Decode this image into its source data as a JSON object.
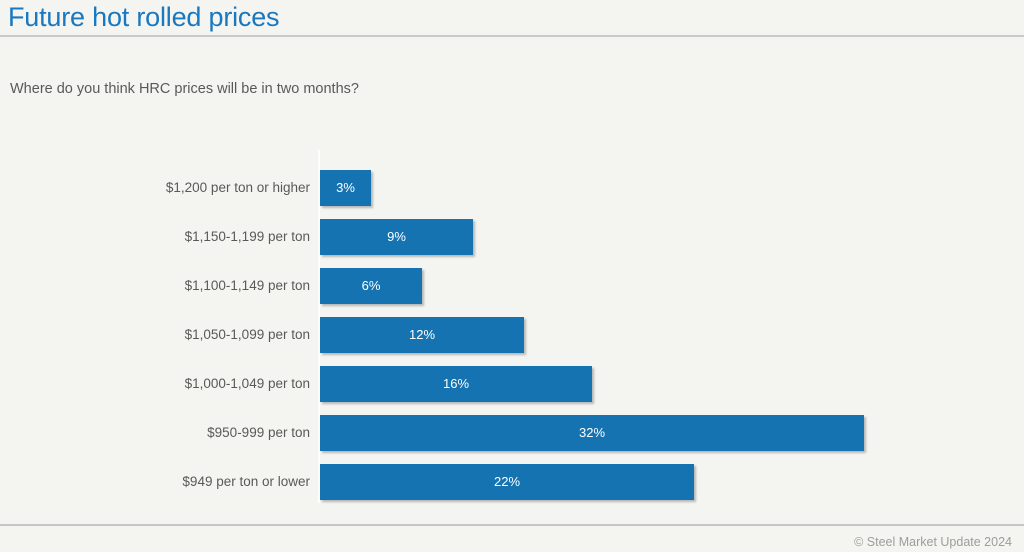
{
  "header": {
    "title": "Future hot rolled prices"
  },
  "subtitle": "Where do you think HRC prices will be in two months?",
  "footer": {
    "copyright": "© Steel Market Update 2024"
  },
  "colors": {
    "background": "#f4f4f1",
    "title": "#1a78bf",
    "bar": "#1673b2",
    "label_text": "#595959",
    "value_text": "#ffffff",
    "footer_text": "#9d9d9d",
    "rule": "#c9c9c9"
  },
  "chart_data": {
    "type": "bar",
    "orientation": "horizontal",
    "title": "Future hot rolled prices",
    "subtitle": "Where do you think HRC prices will be in two months?",
    "categories": [
      "$1,200 per ton or higher",
      "$1,150-1,199 per ton",
      "$1,100-1,149 per ton",
      "$1,050-1,099 per ton",
      "$1,000-1,049 per ton",
      "$950-999 per ton",
      "$949 per ton or lower"
    ],
    "values": [
      3,
      9,
      6,
      12,
      16,
      32,
      22
    ],
    "value_labels": [
      "3%",
      "9%",
      "6%",
      "12%",
      "16%",
      "32%",
      "22%"
    ],
    "unit": "%",
    "xlabel": "",
    "ylabel": "",
    "xlim": [
      0,
      35
    ],
    "grid": false,
    "legend": false,
    "data_label_position": "inside-center"
  }
}
